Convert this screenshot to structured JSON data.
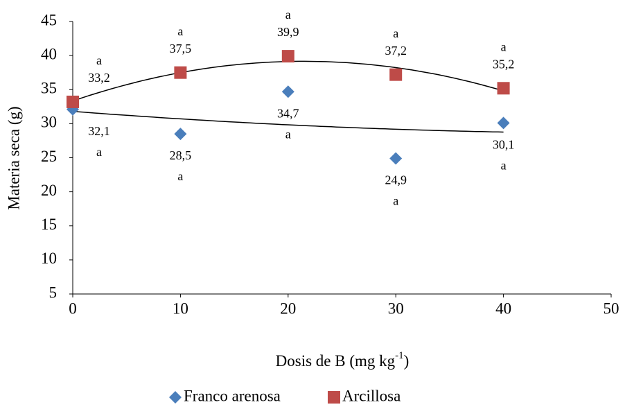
{
  "chart_data": {
    "type": "scatter",
    "ylabel": "Materia seca (g)",
    "xlabel": {
      "text": "Dosis de B (mg kg",
      "sup": "-1",
      "tail": ")"
    },
    "xlim": [
      0,
      50
    ],
    "xticks": [
      0,
      10,
      20,
      30,
      40,
      50
    ],
    "ylim": [
      5,
      45
    ],
    "yticks": [
      5,
      10,
      15,
      20,
      25,
      30,
      35,
      40,
      45
    ],
    "trendline": "polynomial-2",
    "series": [
      {
        "name": "Franco arenosa",
        "color": "#4a7ebb",
        "marker": "diamond",
        "label_side": "below",
        "x": [
          0,
          10,
          20,
          30,
          40
        ],
        "values": [
          32.1,
          28.5,
          34.7,
          24.9,
          30.1
        ],
        "value_labels": [
          "32,1",
          "28,5",
          "34,7",
          "24,9",
          "30,1"
        ],
        "letters": [
          "a",
          "a",
          "a",
          "a",
          "a"
        ]
      },
      {
        "name": "Arcillosa",
        "color": "#be4b48",
        "marker": "square",
        "label_side": "above",
        "x": [
          0,
          10,
          20,
          30,
          40
        ],
        "values": [
          33.2,
          37.5,
          39.9,
          37.2,
          35.2
        ],
        "value_labels": [
          "33,2",
          "37,5",
          "39,9",
          "37,2",
          "35,2"
        ],
        "letters": [
          "a",
          "a",
          "a",
          "a",
          "a"
        ]
      }
    ]
  }
}
